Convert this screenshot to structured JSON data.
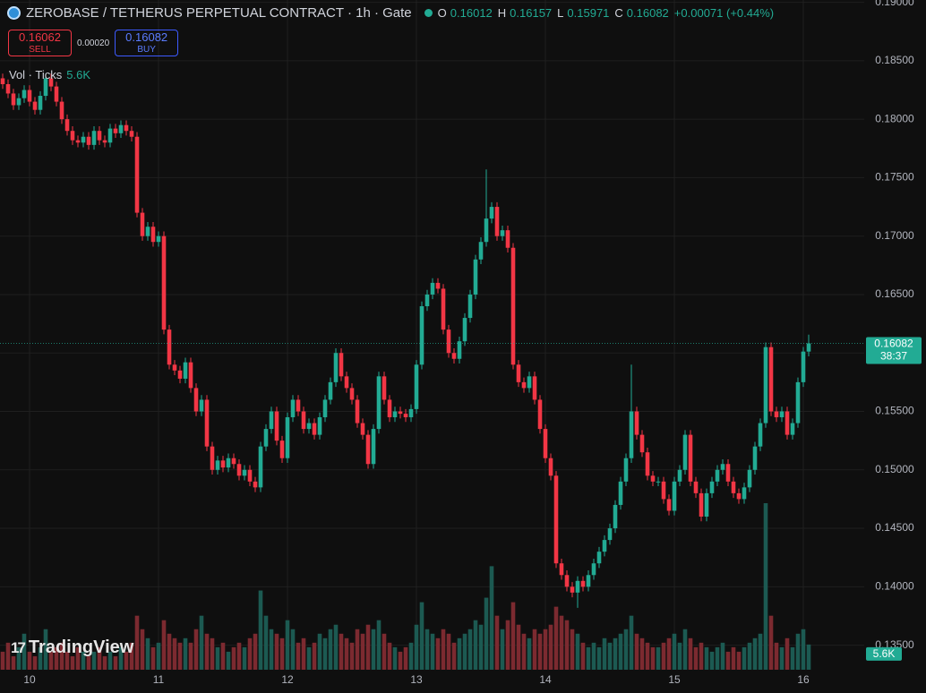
{
  "chart_data": {
    "type": "candlestick",
    "title": "ZEROBASE / TETHERUS PERPETUAL CONTRACT · 1h · Gate",
    "change": "+0.00071 (+0.44%)",
    "ohlc_labels": [
      "O",
      "H",
      "L",
      "C"
    ],
    "trade_panel": {
      "sell_price": "0.16062",
      "sell_label": "SELL",
      "spread": "0.00020",
      "buy_price": "0.16082",
      "buy_label": "BUY"
    },
    "volume_title": "Vol · Ticks",
    "volume_label": "5.6K",
    "countdown": "38:37",
    "logo": "TradingView",
    "up_color": "#22ab94",
    "down_color": "#f23645",
    "volume_up_color": "#1c5a52",
    "volume_down_color": "#7c2a30",
    "grid": true,
    "ylim": [
      0.1329,
      0.1902
    ],
    "yticks": [
      {
        "value": 0.135,
        "label": "0.13500"
      },
      {
        "value": 0.14,
        "label": "0.14000"
      },
      {
        "value": 0.145,
        "label": "0.14500"
      },
      {
        "value": 0.15,
        "label": "0.15000"
      },
      {
        "value": 0.155,
        "label": "0.15500"
      },
      {
        "value": 0.16,
        "label": "0.16000"
      },
      {
        "value": 0.165,
        "label": "0.16500"
      },
      {
        "value": 0.17,
        "label": "0.17000"
      },
      {
        "value": 0.175,
        "label": "0.17500"
      },
      {
        "value": 0.18,
        "label": "0.18000"
      },
      {
        "value": 0.185,
        "label": "0.18500"
      },
      {
        "value": 0.19,
        "label": "0.19000"
      }
    ],
    "categories": [
      null,
      null,
      null,
      null,
      null,
      "10",
      null,
      null,
      null,
      null,
      null,
      null,
      null,
      null,
      null,
      null,
      null,
      null,
      null,
      null,
      null,
      null,
      null,
      null,
      null,
      null,
      null,
      null,
      null,
      "11",
      null,
      null,
      null,
      null,
      null,
      null,
      null,
      null,
      null,
      null,
      null,
      null,
      null,
      null,
      null,
      null,
      null,
      null,
      null,
      null,
      null,
      null,
      null,
      "12",
      null,
      null,
      null,
      null,
      null,
      null,
      null,
      null,
      null,
      null,
      null,
      null,
      null,
      null,
      null,
      null,
      null,
      null,
      null,
      null,
      null,
      null,
      null,
      "13",
      null,
      null,
      null,
      null,
      null,
      null,
      null,
      null,
      null,
      null,
      null,
      null,
      null,
      null,
      null,
      null,
      null,
      null,
      null,
      null,
      null,
      null,
      null,
      "14",
      null,
      null,
      null,
      null,
      null,
      null,
      null,
      null,
      null,
      null,
      null,
      null,
      null,
      null,
      null,
      null,
      null,
      null,
      null,
      null,
      null,
      null,
      null,
      "15",
      null,
      null,
      null,
      null,
      null,
      null,
      null,
      null,
      null,
      null,
      null,
      null,
      null,
      null,
      null,
      null,
      null,
      null,
      null,
      null,
      null,
      null,
      null,
      "16",
      null
    ],
    "open": [
      0.1835,
      0.183,
      0.1822,
      0.1812,
      0.1818,
      0.1825,
      0.1815,
      0.1808,
      0.182,
      0.1835,
      0.1828,
      0.1815,
      0.18,
      0.179,
      0.1782,
      0.178,
      0.1785,
      0.1778,
      0.179,
      0.1782,
      0.178,
      0.1792,
      0.1788,
      0.1795,
      0.179,
      0.1785,
      0.172,
      0.17,
      0.1708,
      0.1695,
      0.17,
      0.162,
      0.159,
      0.1585,
      0.1578,
      0.1592,
      0.157,
      0.155,
      0.156,
      0.152,
      0.15,
      0.1508,
      0.1502,
      0.151,
      0.1505,
      0.1495,
      0.15,
      0.149,
      0.1485,
      0.152,
      0.1535,
      0.155,
      0.1525,
      0.151,
      0.1545,
      0.156,
      0.155,
      0.1535,
      0.154,
      0.153,
      0.1545,
      0.156,
      0.1575,
      0.16,
      0.158,
      0.157,
      0.156,
      0.154,
      0.153,
      0.1505,
      0.1535,
      0.158,
      0.156,
      0.1545,
      0.155,
      0.1548,
      0.1545,
      0.1552,
      0.159,
      0.164,
      0.165,
      0.166,
      0.1655,
      0.162,
      0.16,
      0.1595,
      0.161,
      0.163,
      0.165,
      0.168,
      0.1695,
      0.1715,
      0.1725,
      0.17,
      0.1705,
      0.169,
      0.159,
      0.1575,
      0.157,
      0.158,
      0.156,
      0.1535,
      0.151,
      0.1495,
      0.142,
      0.141,
      0.14,
      0.1395,
      0.1405,
      0.14,
      0.141,
      0.142,
      0.143,
      0.144,
      0.145,
      0.147,
      0.149,
      0.151,
      0.155,
      0.153,
      0.1515,
      0.1495,
      0.149,
      0.149,
      0.1475,
      0.1465,
      0.149,
      0.15,
      0.153,
      0.149,
      0.148,
      0.146,
      0.148,
      0.149,
      0.15,
      0.1505,
      0.149,
      0.148,
      0.1475,
      0.1485,
      0.15,
      0.152,
      0.154,
      0.1605,
      0.155,
      0.1545,
      0.155,
      0.153,
      0.154,
      0.1575,
      0.16012
    ],
    "high": [
      0.1839,
      0.1834,
      0.1826,
      0.1822,
      0.1829,
      0.1829,
      0.1819,
      0.1824,
      0.1839,
      0.1839,
      0.1832,
      0.1819,
      0.1804,
      0.1794,
      0.1786,
      0.1789,
      0.1789,
      0.1794,
      0.1794,
      0.1786,
      0.1796,
      0.1796,
      0.1799,
      0.1799,
      0.1794,
      0.1789,
      0.1724,
      0.1712,
      0.1712,
      0.1704,
      0.1704,
      0.1624,
      0.1594,
      0.1589,
      0.1596,
      0.1596,
      0.1574,
      0.1564,
      0.1564,
      0.1524,
      0.1512,
      0.1512,
      0.1514,
      0.1514,
      0.1509,
      0.1504,
      0.1504,
      0.1494,
      0.1524,
      0.1539,
      0.1554,
      0.1554,
      0.1529,
      0.1549,
      0.1564,
      0.1564,
      0.1554,
      0.1544,
      0.1544,
      0.1549,
      0.1564,
      0.1579,
      0.1604,
      0.1604,
      0.1584,
      0.1574,
      0.1564,
      0.1544,
      0.1534,
      0.1539,
      0.1584,
      0.1584,
      0.1564,
      0.1554,
      0.1554,
      0.1552,
      0.1556,
      0.1594,
      0.1644,
      0.1654,
      0.1664,
      0.1664,
      0.1659,
      0.1624,
      0.1604,
      0.1614,
      0.1634,
      0.1654,
      0.1684,
      0.1699,
      0.1757,
      0.1729,
      0.1729,
      0.1709,
      0.1709,
      0.1694,
      0.1594,
      0.1579,
      0.1584,
      0.1584,
      0.1564,
      0.1539,
      0.1514,
      0.1499,
      0.1424,
      0.1414,
      0.1404,
      0.1409,
      0.1409,
      0.1414,
      0.1424,
      0.1434,
      0.1444,
      0.1454,
      0.1474,
      0.1494,
      0.1514,
      0.159,
      0.1554,
      0.1534,
      0.1519,
      0.1499,
      0.1494,
      0.1494,
      0.1479,
      0.1494,
      0.1504,
      0.1534,
      0.1534,
      0.1494,
      0.1484,
      0.1484,
      0.1494,
      0.1504,
      0.1509,
      0.1509,
      0.1494,
      0.1484,
      0.1489,
      0.1504,
      0.1524,
      0.1544,
      0.1609,
      0.1609,
      0.1554,
      0.1554,
      0.1554,
      0.1544,
      0.1579,
      0.16052,
      0.16157
    ],
    "low": [
      0.1826,
      0.1818,
      0.1808,
      0.1808,
      0.1814,
      0.1811,
      0.1804,
      0.1804,
      0.1816,
      0.1824,
      0.1811,
      0.1796,
      0.1786,
      0.1778,
      0.1776,
      0.1776,
      0.1774,
      0.1774,
      0.1778,
      0.1776,
      0.1776,
      0.1784,
      0.1784,
      0.1786,
      0.1781,
      0.1716,
      0.1696,
      0.1696,
      0.1691,
      0.1691,
      0.1616,
      0.1586,
      0.1581,
      0.1574,
      0.1574,
      0.1566,
      0.1546,
      0.1546,
      0.1516,
      0.1496,
      0.1496,
      0.1498,
      0.1498,
      0.1501,
      0.1491,
      0.1491,
      0.1486,
      0.1481,
      0.1481,
      0.1516,
      0.1531,
      0.1521,
      0.1506,
      0.1506,
      0.1541,
      0.1546,
      0.1531,
      0.1531,
      0.1526,
      0.1526,
      0.1541,
      0.1556,
      0.1571,
      0.1576,
      0.1566,
      0.1556,
      0.1536,
      0.1526,
      0.1501,
      0.1501,
      0.1531,
      0.1556,
      0.1541,
      0.1541,
      0.1544,
      0.1541,
      0.1541,
      0.1548,
      0.1586,
      0.1636,
      0.1646,
      0.1651,
      0.1616,
      0.1596,
      0.1591,
      0.1591,
      0.1606,
      0.1626,
      0.1646,
      0.1676,
      0.1691,
      0.1711,
      0.1696,
      0.1696,
      0.1686,
      0.1586,
      0.1571,
      0.1566,
      0.1566,
      0.1556,
      0.1531,
      0.1506,
      0.1491,
      0.1416,
      0.1406,
      0.1396,
      0.1391,
      0.1382,
      0.1396,
      0.1396,
      0.1406,
      0.1416,
      0.1426,
      0.1436,
      0.1446,
      0.1466,
      0.1486,
      0.1506,
      0.1526,
      0.1511,
      0.1491,
      0.1486,
      0.1486,
      0.1471,
      0.1461,
      0.1461,
      0.1486,
      0.1496,
      0.1486,
      0.1476,
      0.1456,
      0.1456,
      0.1476,
      0.1486,
      0.1496,
      0.1486,
      0.1476,
      0.1471,
      0.1471,
      0.1481,
      0.1496,
      0.1516,
      0.1536,
      0.1546,
      0.1541,
      0.1541,
      0.1526,
      0.1526,
      0.1536,
      0.1571,
      0.15971
    ],
    "close": [
      0.183,
      0.1822,
      0.1812,
      0.1818,
      0.1825,
      0.1815,
      0.1808,
      0.182,
      0.1835,
      0.1828,
      0.1815,
      0.18,
      0.179,
      0.1782,
      0.178,
      0.1785,
      0.1778,
      0.179,
      0.1782,
      0.178,
      0.1792,
      0.1788,
      0.1795,
      0.179,
      0.1785,
      0.172,
      0.17,
      0.1708,
      0.1695,
      0.17,
      0.162,
      0.159,
      0.1585,
      0.1578,
      0.1592,
      0.157,
      0.155,
      0.156,
      0.152,
      0.15,
      0.1508,
      0.1502,
      0.151,
      0.1505,
      0.1495,
      0.15,
      0.149,
      0.1485,
      0.152,
      0.1535,
      0.155,
      0.1525,
      0.151,
      0.1545,
      0.156,
      0.155,
      0.1535,
      0.154,
      0.153,
      0.1545,
      0.156,
      0.1575,
      0.16,
      0.158,
      0.157,
      0.156,
      0.154,
      0.153,
      0.1505,
      0.1535,
      0.158,
      0.156,
      0.1545,
      0.155,
      0.1548,
      0.1545,
      0.1552,
      0.159,
      0.164,
      0.165,
      0.166,
      0.1655,
      0.162,
      0.16,
      0.1595,
      0.161,
      0.163,
      0.165,
      0.168,
      0.1695,
      0.1715,
      0.1725,
      0.17,
      0.1705,
      0.169,
      0.159,
      0.1575,
      0.157,
      0.158,
      0.156,
      0.1535,
      0.151,
      0.1495,
      0.142,
      0.141,
      0.14,
      0.1395,
      0.1405,
      0.14,
      0.141,
      0.142,
      0.143,
      0.144,
      0.145,
      0.147,
      0.149,
      0.151,
      0.155,
      0.153,
      0.1515,
      0.1495,
      0.149,
      0.149,
      0.1475,
      0.1465,
      0.149,
      0.15,
      0.153,
      0.149,
      0.148,
      0.146,
      0.148,
      0.149,
      0.15,
      0.1505,
      0.149,
      0.148,
      0.1475,
      0.1485,
      0.15,
      0.152,
      0.154,
      0.1605,
      0.155,
      0.1545,
      0.155,
      0.153,
      0.154,
      0.1575,
      0.16012,
      0.16082
    ],
    "volume": [
      4000,
      6000,
      3000,
      5000,
      8000,
      4000,
      3000,
      5000,
      9000,
      4000,
      5000,
      6000,
      4000,
      3000,
      5000,
      4000,
      3000,
      4000,
      5000,
      3000,
      4000,
      3000,
      5000,
      4000,
      6000,
      12000,
      9000,
      7000,
      5000,
      6000,
      11000,
      8000,
      7000,
      6000,
      7000,
      6000,
      9000,
      12000,
      8000,
      7000,
      5000,
      6000,
      4000,
      5000,
      6000,
      5000,
      7000,
      8000,
      17600,
      12000,
      9000,
      8000,
      7000,
      11000,
      9000,
      6000,
      7000,
      5000,
      6000,
      8000,
      7000,
      9000,
      10000,
      8000,
      7000,
      6000,
      9000,
      8000,
      10000,
      9000,
      11000,
      8000,
      6000,
      5000,
      4000,
      5000,
      6000,
      10000,
      15000,
      9000,
      8000,
      7000,
      9000,
      8000,
      6000,
      7000,
      8000,
      9000,
      11000,
      10000,
      16000,
      23000,
      12000,
      9000,
      11000,
      15000,
      10000,
      8000,
      7000,
      9000,
      8000,
      9000,
      10000,
      14000,
      12000,
      11000,
      9000,
      8000,
      6000,
      5000,
      6000,
      5000,
      7000,
      6000,
      7000,
      8000,
      9000,
      12000,
      8000,
      7000,
      6000,
      5000,
      5000,
      6000,
      7000,
      8000,
      6000,
      9000,
      7000,
      5000,
      6000,
      5000,
      4000,
      5000,
      6000,
      4000,
      5000,
      4000,
      5000,
      6000,
      7000,
      8000,
      37000,
      12000,
      6000,
      5000,
      7000,
      5000,
      8000,
      9000,
      5600
    ]
  }
}
